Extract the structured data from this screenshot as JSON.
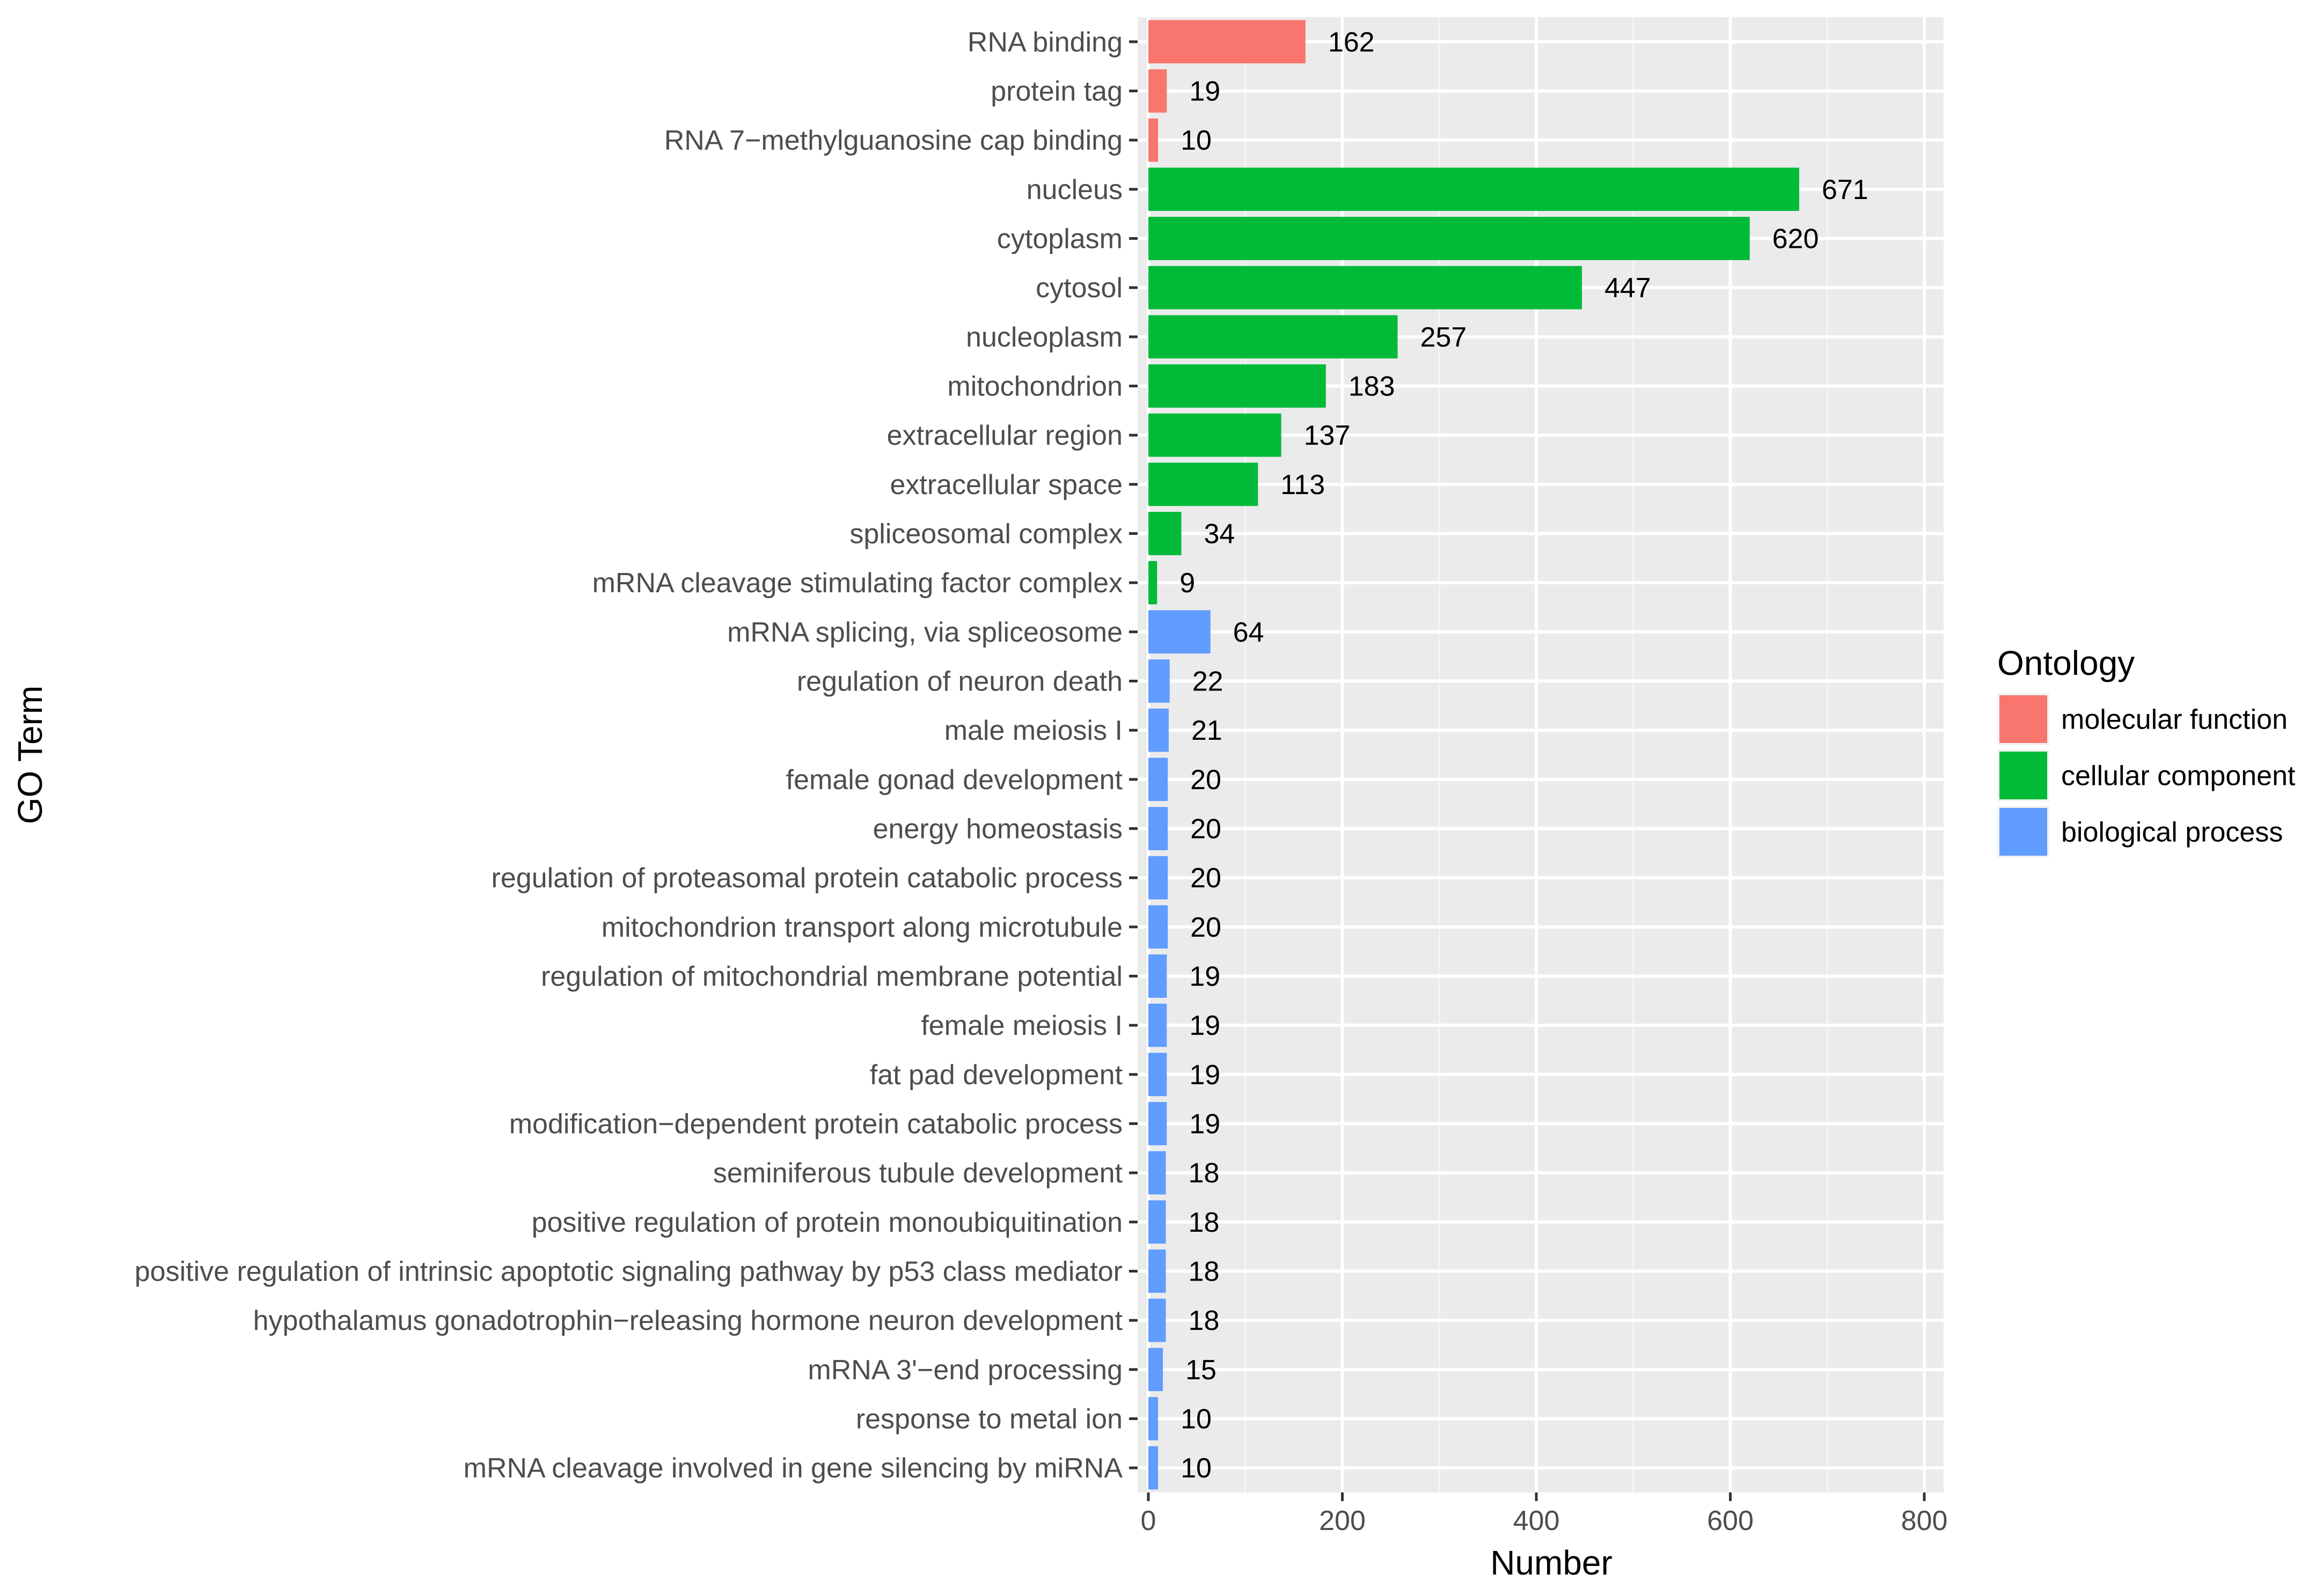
{
  "chart_data": {
    "type": "bar",
    "orientation": "horizontal",
    "title": "",
    "xlabel": "Number",
    "ylabel": "GO Term",
    "xlim": [
      0,
      820
    ],
    "xticks": [
      0,
      200,
      400,
      600,
      800
    ],
    "grid": true,
    "legend": {
      "title": "Ontology",
      "position": "right",
      "entries": [
        {
          "label": "molecular function",
          "color": "#F8766D"
        },
        {
          "label": "cellular component",
          "color": "#00BA38"
        },
        {
          "label": "biological process",
          "color": "#619CFF"
        }
      ]
    },
    "categories": [
      "RNA binding",
      "protein tag",
      "RNA 7−methylguanosine cap binding",
      "nucleus",
      "cytoplasm",
      "cytosol",
      "nucleoplasm",
      "mitochondrion",
      "extracellular region",
      "extracellular space",
      "spliceosomal complex",
      "mRNA cleavage stimulating factor complex",
      "mRNA splicing, via spliceosome",
      "regulation of neuron death",
      "male meiosis I",
      "female gonad development",
      "energy homeostasis",
      "regulation of proteasomal protein catabolic process",
      "mitochondrion transport along microtubule",
      "regulation of mitochondrial membrane potential",
      "female meiosis I",
      "fat pad development",
      "modification−dependent protein catabolic process",
      "seminiferous tubule development",
      "positive regulation of protein monoubiquitination",
      "positive regulation of intrinsic apoptotic signaling pathway by p53 class mediator",
      "hypothalamus gonadotrophin−releasing hormone neuron development",
      "mRNA 3'−end processing",
      "response to metal ion",
      "mRNA cleavage involved in gene silencing by miRNA"
    ],
    "values": [
      162,
      19,
      10,
      671,
      620,
      447,
      257,
      183,
      137,
      113,
      34,
      9,
      64,
      22,
      21,
      20,
      20,
      20,
      20,
      19,
      19,
      19,
      19,
      18,
      18,
      18,
      18,
      15,
      10,
      10
    ],
    "ontology": [
      "molecular function",
      "molecular function",
      "molecular function",
      "cellular component",
      "cellular component",
      "cellular component",
      "cellular component",
      "cellular component",
      "cellular component",
      "cellular component",
      "cellular component",
      "cellular component",
      "biological process",
      "biological process",
      "biological process",
      "biological process",
      "biological process",
      "biological process",
      "biological process",
      "biological process",
      "biological process",
      "biological process",
      "biological process",
      "biological process",
      "biological process",
      "biological process",
      "biological process",
      "biological process",
      "biological process",
      "biological process"
    ],
    "colors": {
      "panel_background": "#EBEBEB",
      "grid_major": "#FFFFFF",
      "grid_minor": "#F5F5F5",
      "axis_text": "#4D4D4D",
      "label_text": "#000000"
    }
  }
}
